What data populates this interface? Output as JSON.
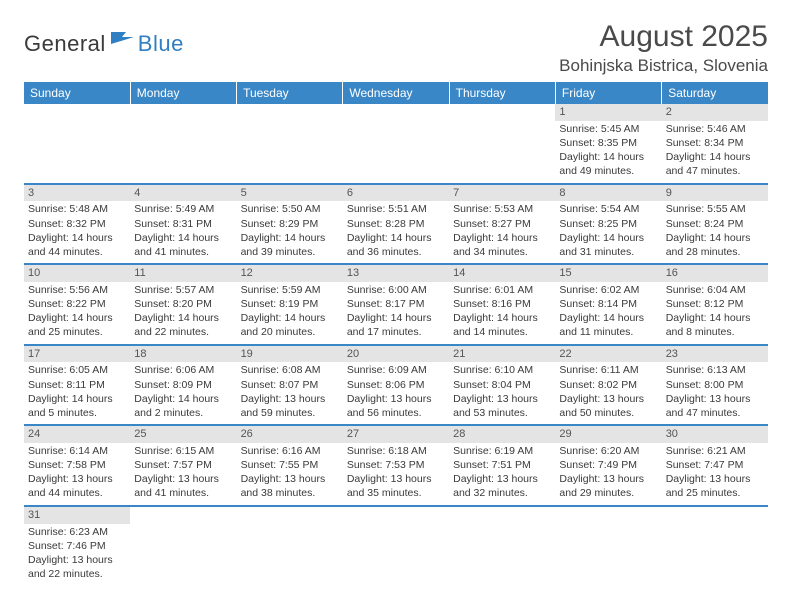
{
  "logo": {
    "general": "General",
    "blue": "Blue"
  },
  "title": "August 2025",
  "subtitle": "Bohinjska Bistrica, Slovenia",
  "colors": {
    "header_bg": "#3a87c7",
    "header_text": "#ffffff",
    "rule": "#3a87c7",
    "daynum_bg": "#e4e4e4",
    "text": "#3a3a3a",
    "logo_blue": "#2f7fc2"
  },
  "dayHeaders": [
    "Sunday",
    "Monday",
    "Tuesday",
    "Wednesday",
    "Thursday",
    "Friday",
    "Saturday"
  ],
  "weeks": [
    [
      null,
      null,
      null,
      null,
      null,
      {
        "n": "1",
        "sr": "Sunrise: 5:45 AM",
        "ss": "Sunset: 8:35 PM",
        "dl": "Daylight: 14 hours and 49 minutes."
      },
      {
        "n": "2",
        "sr": "Sunrise: 5:46 AM",
        "ss": "Sunset: 8:34 PM",
        "dl": "Daylight: 14 hours and 47 minutes."
      }
    ],
    [
      {
        "n": "3",
        "sr": "Sunrise: 5:48 AM",
        "ss": "Sunset: 8:32 PM",
        "dl": "Daylight: 14 hours and 44 minutes."
      },
      {
        "n": "4",
        "sr": "Sunrise: 5:49 AM",
        "ss": "Sunset: 8:31 PM",
        "dl": "Daylight: 14 hours and 41 minutes."
      },
      {
        "n": "5",
        "sr": "Sunrise: 5:50 AM",
        "ss": "Sunset: 8:29 PM",
        "dl": "Daylight: 14 hours and 39 minutes."
      },
      {
        "n": "6",
        "sr": "Sunrise: 5:51 AM",
        "ss": "Sunset: 8:28 PM",
        "dl": "Daylight: 14 hours and 36 minutes."
      },
      {
        "n": "7",
        "sr": "Sunrise: 5:53 AM",
        "ss": "Sunset: 8:27 PM",
        "dl": "Daylight: 14 hours and 34 minutes."
      },
      {
        "n": "8",
        "sr": "Sunrise: 5:54 AM",
        "ss": "Sunset: 8:25 PM",
        "dl": "Daylight: 14 hours and 31 minutes."
      },
      {
        "n": "9",
        "sr": "Sunrise: 5:55 AM",
        "ss": "Sunset: 8:24 PM",
        "dl": "Daylight: 14 hours and 28 minutes."
      }
    ],
    [
      {
        "n": "10",
        "sr": "Sunrise: 5:56 AM",
        "ss": "Sunset: 8:22 PM",
        "dl": "Daylight: 14 hours and 25 minutes."
      },
      {
        "n": "11",
        "sr": "Sunrise: 5:57 AM",
        "ss": "Sunset: 8:20 PM",
        "dl": "Daylight: 14 hours and 22 minutes."
      },
      {
        "n": "12",
        "sr": "Sunrise: 5:59 AM",
        "ss": "Sunset: 8:19 PM",
        "dl": "Daylight: 14 hours and 20 minutes."
      },
      {
        "n": "13",
        "sr": "Sunrise: 6:00 AM",
        "ss": "Sunset: 8:17 PM",
        "dl": "Daylight: 14 hours and 17 minutes."
      },
      {
        "n": "14",
        "sr": "Sunrise: 6:01 AM",
        "ss": "Sunset: 8:16 PM",
        "dl": "Daylight: 14 hours and 14 minutes."
      },
      {
        "n": "15",
        "sr": "Sunrise: 6:02 AM",
        "ss": "Sunset: 8:14 PM",
        "dl": "Daylight: 14 hours and 11 minutes."
      },
      {
        "n": "16",
        "sr": "Sunrise: 6:04 AM",
        "ss": "Sunset: 8:12 PM",
        "dl": "Daylight: 14 hours and 8 minutes."
      }
    ],
    [
      {
        "n": "17",
        "sr": "Sunrise: 6:05 AM",
        "ss": "Sunset: 8:11 PM",
        "dl": "Daylight: 14 hours and 5 minutes."
      },
      {
        "n": "18",
        "sr": "Sunrise: 6:06 AM",
        "ss": "Sunset: 8:09 PM",
        "dl": "Daylight: 14 hours and 2 minutes."
      },
      {
        "n": "19",
        "sr": "Sunrise: 6:08 AM",
        "ss": "Sunset: 8:07 PM",
        "dl": "Daylight: 13 hours and 59 minutes."
      },
      {
        "n": "20",
        "sr": "Sunrise: 6:09 AM",
        "ss": "Sunset: 8:06 PM",
        "dl": "Daylight: 13 hours and 56 minutes."
      },
      {
        "n": "21",
        "sr": "Sunrise: 6:10 AM",
        "ss": "Sunset: 8:04 PM",
        "dl": "Daylight: 13 hours and 53 minutes."
      },
      {
        "n": "22",
        "sr": "Sunrise: 6:11 AM",
        "ss": "Sunset: 8:02 PM",
        "dl": "Daylight: 13 hours and 50 minutes."
      },
      {
        "n": "23",
        "sr": "Sunrise: 6:13 AM",
        "ss": "Sunset: 8:00 PM",
        "dl": "Daylight: 13 hours and 47 minutes."
      }
    ],
    [
      {
        "n": "24",
        "sr": "Sunrise: 6:14 AM",
        "ss": "Sunset: 7:58 PM",
        "dl": "Daylight: 13 hours and 44 minutes."
      },
      {
        "n": "25",
        "sr": "Sunrise: 6:15 AM",
        "ss": "Sunset: 7:57 PM",
        "dl": "Daylight: 13 hours and 41 minutes."
      },
      {
        "n": "26",
        "sr": "Sunrise: 6:16 AM",
        "ss": "Sunset: 7:55 PM",
        "dl": "Daylight: 13 hours and 38 minutes."
      },
      {
        "n": "27",
        "sr": "Sunrise: 6:18 AM",
        "ss": "Sunset: 7:53 PM",
        "dl": "Daylight: 13 hours and 35 minutes."
      },
      {
        "n": "28",
        "sr": "Sunrise: 6:19 AM",
        "ss": "Sunset: 7:51 PM",
        "dl": "Daylight: 13 hours and 32 minutes."
      },
      {
        "n": "29",
        "sr": "Sunrise: 6:20 AM",
        "ss": "Sunset: 7:49 PM",
        "dl": "Daylight: 13 hours and 29 minutes."
      },
      {
        "n": "30",
        "sr": "Sunrise: 6:21 AM",
        "ss": "Sunset: 7:47 PM",
        "dl": "Daylight: 13 hours and 25 minutes."
      }
    ],
    [
      {
        "n": "31",
        "sr": "Sunrise: 6:23 AM",
        "ss": "Sunset: 7:46 PM",
        "dl": "Daylight: 13 hours and 22 minutes."
      },
      null,
      null,
      null,
      null,
      null,
      null
    ]
  ]
}
